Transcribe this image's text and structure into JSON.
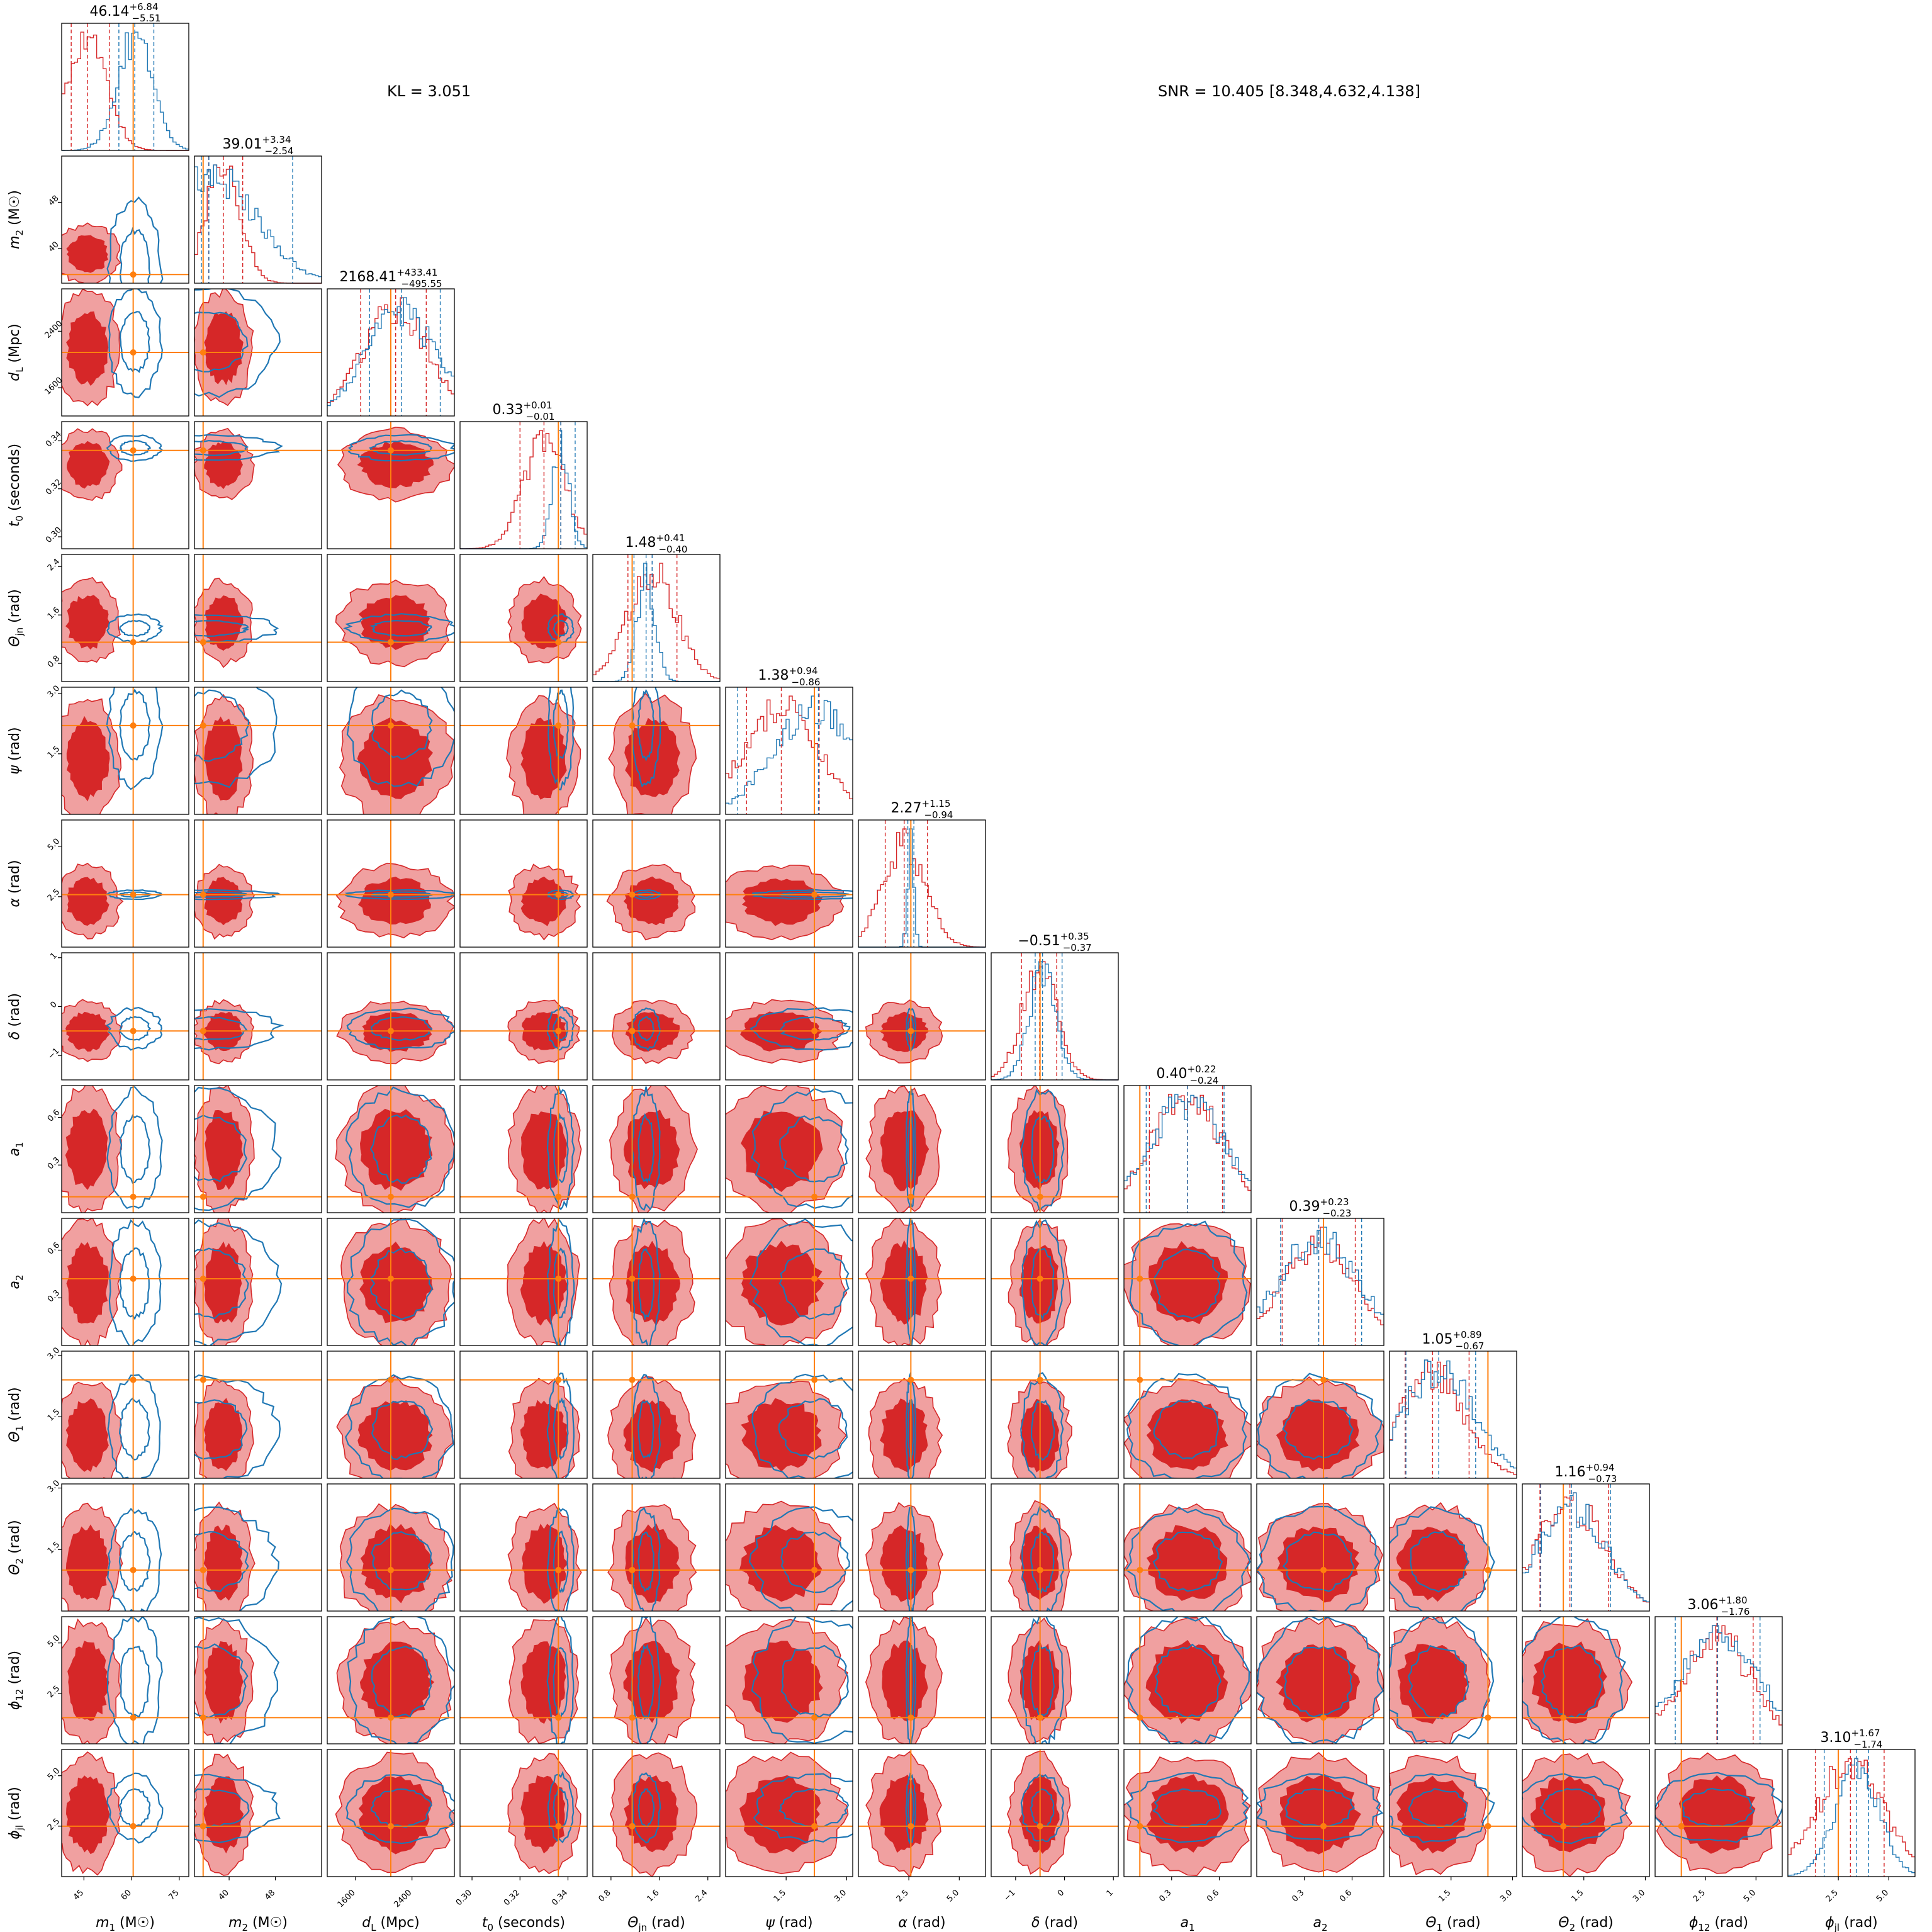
{
  "annotations": {
    "kl": "KL = 3.051",
    "snr": "SNR = 10.405 [8.348,4.632,4.138]"
  },
  "colors": {
    "red": "#d62728",
    "red_light": "#f0a0a0",
    "blue": "#1f77b4",
    "orange": "#ff7f0e"
  },
  "chart_data": {
    "type": "corner",
    "parameters": [
      {
        "axis_label": "m₁ (M☉)",
        "label_main": "m",
        "label_sub": "1",
        "label_unit": " (M☉)",
        "range": [
          38,
          78
        ],
        "ticks": [
          "45",
          "60",
          "75"
        ],
        "tick_values": [
          45,
          60,
          75
        ],
        "truth": 60.5,
        "title": {
          "value": "46.14",
          "plus": "+6.84",
          "minus": "−5.51"
        },
        "red_quantiles": [
          41,
          46.14,
          52.98
        ],
        "blue_quantiles": [
          56,
          61,
          67
        ]
      },
      {
        "axis_label": "m₂ (M☉)",
        "label_main": "m",
        "label_sub": "2",
        "label_unit": " (M☉)",
        "range": [
          34,
          56
        ],
        "ticks": [
          "40",
          "48"
        ],
        "tick_values": [
          40,
          48
        ],
        "truth": 35.5,
        "title": {
          "value": "39.01",
          "plus": "+3.34",
          "minus": "−2.54"
        },
        "red_quantiles": [
          36.47,
          39.01,
          42.35
        ],
        "blue_quantiles": [
          35.2,
          36.5,
          51
        ]
      },
      {
        "axis_label": "d_L (Mpc)",
        "label_main": "d",
        "label_sub": "L",
        "label_unit": " (Mpc)",
        "range": [
          1200,
          3000
        ],
        "ticks": [
          "1600",
          "2400"
        ],
        "tick_values": [
          1600,
          2400
        ],
        "truth": 2100,
        "title": {
          "value": "2168.41",
          "plus": "+433.41",
          "minus": "−495.55"
        },
        "red_quantiles": [
          1672.86,
          2168.41,
          2601.82
        ],
        "blue_quantiles": [
          1800,
          2250,
          2800
        ]
      },
      {
        "axis_label": "t₀ (seconds)",
        "label_main": "t",
        "label_sub": "0",
        "label_unit": " (seconds)",
        "range": [
          0.295,
          0.348
        ],
        "ticks": [
          "0.30",
          "0.32",
          "0.34"
        ],
        "tick_values": [
          0.3,
          0.32,
          0.34
        ],
        "truth": 0.336,
        "title": {
          "value": "0.33",
          "plus": "+0.01",
          "minus": "−0.01"
        },
        "red_quantiles": [
          0.32,
          0.33,
          0.337
        ],
        "blue_quantiles": [
          0.336,
          0.337,
          0.343
        ]
      },
      {
        "axis_label": "Θⱼₙ (rad)",
        "label_main": "Θ",
        "label_sub": "jn",
        "label_unit": " (rad)",
        "range": [
          0.5,
          2.6
        ],
        "ticks": [
          "0.8",
          "1.6",
          "2.4"
        ],
        "tick_values": [
          0.8,
          1.6,
          2.4
        ],
        "truth": 1.15,
        "title": {
          "value": "1.48",
          "plus": "+0.41",
          "minus": "−0.40"
        },
        "red_quantiles": [
          1.08,
          1.48,
          1.89
        ],
        "blue_quantiles": [
          1.18,
          1.38,
          1.48
        ]
      },
      {
        "axis_label": "ψ (rad)",
        "label_main": "ψ",
        "label_sub": "",
        "label_unit": " (rad)",
        "range": [
          0,
          3.15
        ],
        "ticks": [
          "1.5",
          "3.0"
        ],
        "tick_values": [
          1.5,
          3.0
        ],
        "truth": 2.2,
        "title": {
          "value": "1.38",
          "plus": "+0.94",
          "minus": "−0.86"
        },
        "red_quantiles": [
          0.52,
          1.38,
          2.32
        ],
        "blue_quantiles": [
          0.3,
          2.2,
          2.3
        ]
      },
      {
        "axis_label": "α (rad)",
        "label_main": "α",
        "label_sub": "",
        "label_unit": " (rad)",
        "range": [
          0,
          6.3
        ],
        "ticks": [
          "2.5",
          "5.0"
        ],
        "tick_values": [
          2.5,
          5.0
        ],
        "truth": 2.6,
        "title": {
          "value": "2.27",
          "plus": "+1.15",
          "minus": "−0.94"
        },
        "red_quantiles": [
          1.33,
          2.27,
          3.42
        ],
        "blue_quantiles": [
          2.45,
          2.6,
          2.75
        ]
      },
      {
        "axis_label": "δ (rad)",
        "label_main": "δ",
        "label_sub": "",
        "label_unit": " (rad)",
        "range": [
          -1.5,
          1.1
        ],
        "ticks": [
          "−1",
          "0",
          "1"
        ],
        "tick_values": [
          -1,
          0,
          1
        ],
        "truth": -0.5,
        "title": {
          "value": "−0.51",
          "plus": "+0.35",
          "minus": "−0.37"
        },
        "red_quantiles": [
          -0.88,
          -0.51,
          -0.16
        ],
        "blue_quantiles": [
          -0.6,
          -0.45,
          -0.05
        ]
      },
      {
        "axis_label": "a₁",
        "label_main": "a",
        "label_sub": "1",
        "label_unit": "",
        "range": [
          0,
          0.8
        ],
        "ticks": [
          "0.3",
          "0.6"
        ],
        "tick_values": [
          0.3,
          0.6
        ],
        "truth": 0.1,
        "title": {
          "value": "0.40",
          "plus": "+0.22",
          "minus": "−0.24"
        },
        "red_quantiles": [
          0.16,
          0.4,
          0.62
        ],
        "blue_quantiles": [
          0.14,
          0.4,
          0.63
        ]
      },
      {
        "axis_label": "a₂",
        "label_main": "a",
        "label_sub": "2",
        "label_unit": "",
        "range": [
          0,
          0.8
        ],
        "ticks": [
          "0.3",
          "0.6"
        ],
        "tick_values": [
          0.3,
          0.6
        ],
        "truth": 0.42,
        "title": {
          "value": "0.39",
          "plus": "+0.23",
          "minus": "−0.23"
        },
        "red_quantiles": [
          0.16,
          0.39,
          0.62
        ],
        "blue_quantiles": [
          0.15,
          0.39,
          0.66
        ]
      },
      {
        "axis_label": "Θ₁ (rad)",
        "label_main": "Θ",
        "label_sub": "1",
        "label_unit": " (rad)",
        "range": [
          0,
          3.1
        ],
        "ticks": [
          "1.5",
          "3.0"
        ],
        "tick_values": [
          1.5,
          3.0
        ],
        "truth": 2.4,
        "title": {
          "value": "1.05",
          "plus": "+0.89",
          "minus": "−0.67"
        },
        "red_quantiles": [
          0.38,
          1.05,
          1.94
        ],
        "blue_quantiles": [
          0.4,
          1.2,
          2.1
        ]
      },
      {
        "axis_label": "Θ₂ (rad)",
        "label_main": "Θ",
        "label_sub": "2",
        "label_unit": " (rad)",
        "range": [
          0,
          3.1
        ],
        "ticks": [
          "1.5",
          "3.0"
        ],
        "tick_values": [
          1.5,
          3.0
        ],
        "truth": 1.0,
        "title": {
          "value": "1.16",
          "plus": "+0.94",
          "minus": "−0.73"
        },
        "red_quantiles": [
          0.43,
          1.16,
          2.1
        ],
        "blue_quantiles": [
          0.45,
          1.2,
          2.15
        ]
      },
      {
        "axis_label": "ϕ₁₂ (rad)",
        "label_main": "ϕ",
        "label_sub": "12",
        "label_unit": " (rad)",
        "range": [
          0,
          6.3
        ],
        "ticks": [
          "2.5",
          "5.0"
        ],
        "tick_values": [
          2.5,
          5.0
        ],
        "truth": 1.3,
        "title": {
          "value": "3.06",
          "plus": "+1.80",
          "minus": "−1.76"
        },
        "red_quantiles": [
          1.3,
          3.06,
          4.86
        ],
        "blue_quantiles": [
          1.0,
          3.1,
          5.2
        ]
      },
      {
        "axis_label": "ϕⱼₗ (rad)",
        "label_main": "ϕ",
        "label_sub": "jl",
        "label_unit": " (rad)",
        "range": [
          0,
          6.3
        ],
        "ticks": [
          "2.5",
          "5.0"
        ],
        "tick_values": [
          2.5,
          5.0
        ],
        "truth": 2.5,
        "title": {
          "value": "3.10",
          "plus": "+1.67",
          "minus": "−1.74"
        },
        "red_quantiles": [
          1.36,
          3.1,
          4.77
        ],
        "blue_quantiles": [
          1.8,
          3.4,
          4.0
        ]
      }
    ]
  }
}
